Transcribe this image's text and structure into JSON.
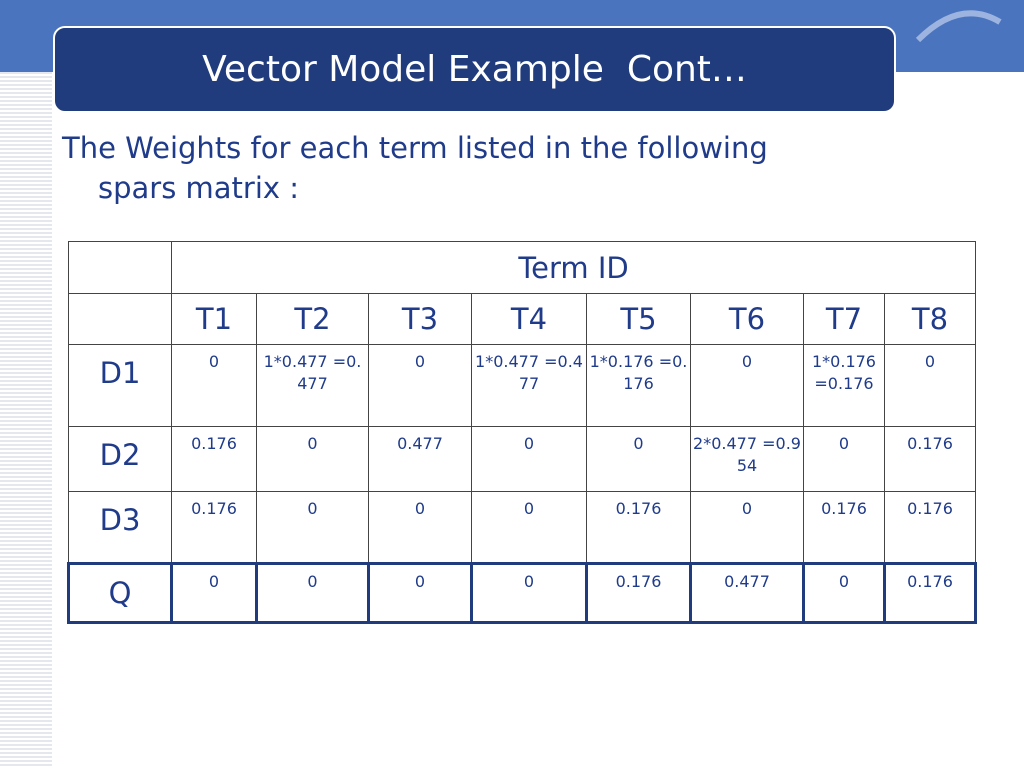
{
  "header": {
    "title": "Vector Model Example  Cont…"
  },
  "body": {
    "text": "The Weights for each term listed in the following spars matrix :"
  },
  "table": {
    "group_header": "Term ID",
    "columns": [
      "T1",
      "T2",
      "T3",
      "T4",
      "T5",
      "T6",
      "T7",
      "T8"
    ],
    "rows": [
      {
        "label": "D1",
        "cells": [
          "0",
          "1*0.477 =0.477",
          "0",
          "1*0.477 =0.477",
          "1*0.176 =0.176",
          "0",
          "1*0.176=0.176",
          "0"
        ]
      },
      {
        "label": "D2",
        "cells": [
          "0.176",
          "0",
          "0.477",
          "0",
          "0",
          "2*0.477 =0.954",
          "0",
          "0.176"
        ]
      },
      {
        "label": "D3",
        "cells": [
          "0.176",
          "0",
          "0",
          "0",
          "0.176",
          "0",
          "0.176",
          "0.176"
        ]
      },
      {
        "label": "Q",
        "cells": [
          "0",
          "0",
          "0",
          "0",
          "0.176",
          "0.477",
          "0",
          "0.176"
        ]
      }
    ]
  }
}
